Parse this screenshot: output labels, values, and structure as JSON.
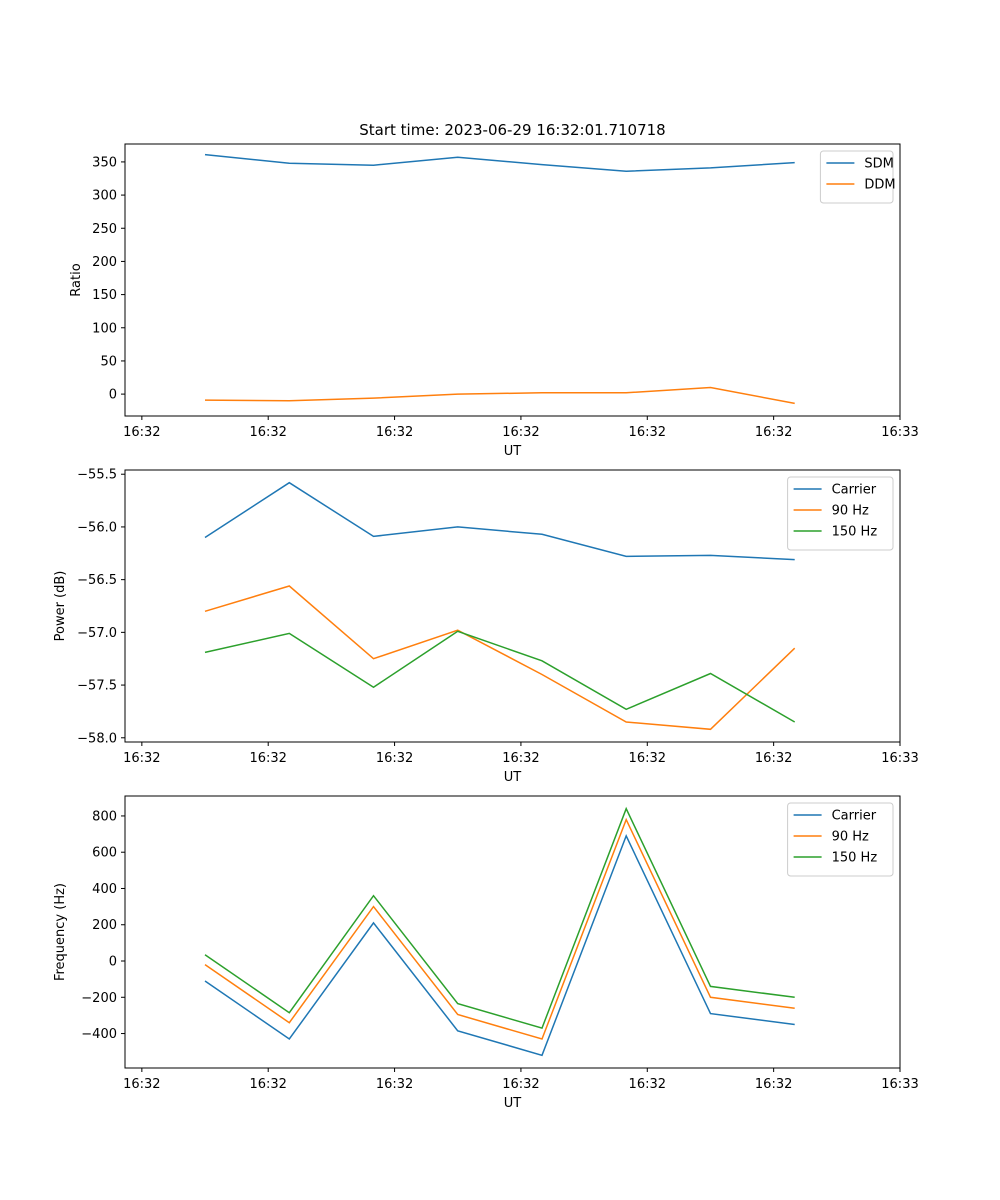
{
  "figure_title": "Start time: 2023-06-29 16:32:01.710718",
  "chart_data": [
    {
      "type": "line",
      "title": "Start time: 2023-06-29 16:32:01.710718",
      "xlabel": "UT",
      "ylabel": "Ratio",
      "x_tick_labels": [
        "16:32",
        "16:32",
        "16:32",
        "16:32",
        "16:32",
        "16:32",
        "16:33"
      ],
      "x": [
        1,
        2,
        3,
        4,
        5,
        6,
        7,
        8
      ],
      "x_ticks": [
        0.25,
        1.75,
        3.25,
        4.75,
        6.25,
        7.75,
        9.25
      ],
      "xlim": [
        0.05,
        9.25
      ],
      "ylim": [
        -33,
        377
      ],
      "y_ticks": [
        0,
        50,
        100,
        150,
        200,
        250,
        300,
        350
      ],
      "y_tick_labels": [
        "0",
        "50",
        "100",
        "150",
        "200",
        "250",
        "300",
        "350"
      ],
      "legend": "top-right",
      "grid": false,
      "series": [
        {
          "name": "SDM",
          "color": "#1f77b4",
          "values": [
            361,
            348,
            345,
            357,
            346,
            336,
            341,
            349
          ]
        },
        {
          "name": "DDM",
          "color": "#ff7f0e",
          "values": [
            -9,
            -10,
            -6,
            0,
            2,
            2,
            10,
            -14
          ]
        }
      ]
    },
    {
      "type": "line",
      "title": "",
      "xlabel": "UT",
      "ylabel": "Power (dB)",
      "x_tick_labels": [
        "16:32",
        "16:32",
        "16:32",
        "16:32",
        "16:32",
        "16:32",
        "16:33"
      ],
      "x": [
        1,
        2,
        3,
        4,
        5,
        6,
        7,
        8
      ],
      "x_ticks": [
        0.25,
        1.75,
        3.25,
        4.75,
        6.25,
        7.75,
        9.25
      ],
      "xlim": [
        0.05,
        9.25
      ],
      "ylim": [
        -58.04,
        -55.46
      ],
      "y_ticks": [
        -58.0,
        -57.5,
        -57.0,
        -56.5,
        -56.0,
        -55.5
      ],
      "y_tick_labels": [
        "−58.0",
        "−57.5",
        "−57.0",
        "−56.5",
        "−56.0",
        "−55.5"
      ],
      "legend": "top-right",
      "grid": false,
      "series": [
        {
          "name": "Carrier",
          "color": "#1f77b4",
          "values": [
            -56.1,
            -55.58,
            -56.09,
            -56.0,
            -56.07,
            -56.28,
            -56.27,
            -56.31
          ]
        },
        {
          "name": "90 Hz",
          "color": "#ff7f0e",
          "values": [
            -56.8,
            -56.56,
            -57.25,
            -56.98,
            -57.4,
            -57.85,
            -57.92,
            -57.15
          ]
        },
        {
          "name": "150 Hz",
          "color": "#2ca02c",
          "values": [
            -57.19,
            -57.01,
            -57.52,
            -56.99,
            -57.27,
            -57.73,
            -57.39,
            -57.85
          ]
        }
      ]
    },
    {
      "type": "line",
      "title": "",
      "xlabel": "UT",
      "ylabel": "Frequency (Hz)",
      "x_tick_labels": [
        "16:32",
        "16:32",
        "16:32",
        "16:32",
        "16:32",
        "16:32",
        "16:33"
      ],
      "x": [
        1,
        2,
        3,
        4,
        5,
        6,
        7,
        8
      ],
      "x_ticks": [
        0.25,
        1.75,
        3.25,
        4.75,
        6.25,
        7.75,
        9.25
      ],
      "xlim": [
        0.05,
        9.25
      ],
      "ylim": [
        -590,
        910
      ],
      "y_ticks": [
        -400,
        -200,
        0,
        200,
        400,
        600,
        800
      ],
      "y_tick_labels": [
        "−400",
        "−200",
        "0",
        "200",
        "400",
        "600",
        "800"
      ],
      "legend": "top-right",
      "grid": false,
      "series": [
        {
          "name": "Carrier",
          "color": "#1f77b4",
          "values": [
            -110,
            -430,
            210,
            -385,
            -520,
            690,
            -290,
            -350
          ]
        },
        {
          "name": "90 Hz",
          "color": "#ff7f0e",
          "values": [
            -20,
            -340,
            300,
            -295,
            -430,
            780,
            -200,
            -260
          ]
        },
        {
          "name": "150 Hz",
          "color": "#2ca02c",
          "values": [
            35,
            -285,
            360,
            -235,
            -370,
            840,
            -140,
            -200
          ]
        }
      ]
    }
  ]
}
